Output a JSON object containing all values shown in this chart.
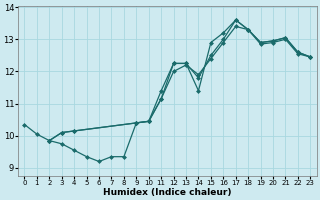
{
  "xlabel": "Humidex (Indice chaleur)",
  "bg_color": "#ceeaf0",
  "grid_color": "#a8d8e0",
  "line_color": "#1a6b6b",
  "markersize": 2.5,
  "linewidth": 0.9,
  "xlim": [
    -0.5,
    23.5
  ],
  "ylim": [
    8.75,
    14.05
  ],
  "xticks": [
    0,
    1,
    2,
    3,
    4,
    5,
    6,
    7,
    8,
    9,
    10,
    11,
    12,
    13,
    14,
    15,
    16,
    17,
    18,
    19,
    20,
    21,
    22,
    23
  ],
  "yticks": [
    9,
    10,
    11,
    12,
    13,
    14
  ],
  "line1_x": [
    0,
    1,
    2,
    3,
    4,
    5,
    6,
    7,
    8,
    9,
    10,
    11,
    12,
    13,
    14,
    15,
    16,
    17,
    18,
    19,
    20,
    21,
    22,
    23
  ],
  "line1_y": [
    10.35,
    10.05,
    9.85,
    9.75,
    9.55,
    9.35,
    9.2,
    9.35,
    9.35,
    10.4,
    10.45,
    11.15,
    12.25,
    12.25,
    11.4,
    12.9,
    13.2,
    13.6,
    13.3,
    12.9,
    12.95,
    13.05,
    12.6,
    12.45
  ],
  "line2_x": [
    2,
    3,
    4,
    9,
    10,
    11,
    12,
    13,
    14,
    15,
    16,
    17,
    18,
    19,
    20,
    21,
    22,
    23
  ],
  "line2_y": [
    9.85,
    10.1,
    10.15,
    10.4,
    10.45,
    11.15,
    12.0,
    12.2,
    11.9,
    12.4,
    12.9,
    13.4,
    13.3,
    12.9,
    12.95,
    13.05,
    12.6,
    12.45
  ],
  "line3_x": [
    2,
    3,
    4,
    9,
    10,
    11,
    12,
    13,
    14,
    15,
    16,
    17,
    18,
    19,
    20,
    21,
    22,
    23
  ],
  "line3_y": [
    9.85,
    10.1,
    10.15,
    10.4,
    10.45,
    11.4,
    12.25,
    12.25,
    11.8,
    12.5,
    13.0,
    13.6,
    13.3,
    12.85,
    12.9,
    13.0,
    12.55,
    12.45
  ]
}
